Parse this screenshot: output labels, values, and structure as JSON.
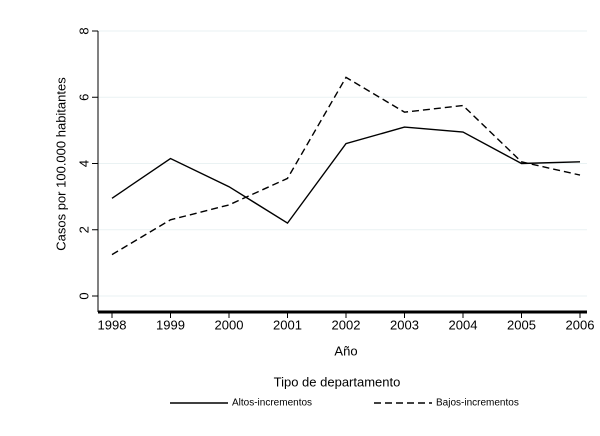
{
  "chart_data": {
    "type": "line",
    "x_label": "Año",
    "y_label": "Casos por 100.000 habitantes",
    "x": [
      1998,
      1999,
      2000,
      2001,
      2002,
      2003,
      2004,
      2005,
      2006
    ],
    "series": [
      {
        "name": "Altos-incrementos",
        "color": "#000000",
        "dash": "solid",
        "values": [
          2.95,
          4.15,
          3.3,
          2.2,
          4.6,
          5.1,
          4.95,
          4.0,
          4.05
        ]
      },
      {
        "name": "Bajos-incrementos",
        "color": "#000000",
        "dash": "dashed",
        "values": [
          1.25,
          2.3,
          2.75,
          3.55,
          6.6,
          5.55,
          5.75,
          4.05,
          3.65
        ]
      }
    ],
    "xlim": [
      1998,
      2006
    ],
    "xticks": [
      1998,
      1999,
      2000,
      2001,
      2002,
      2003,
      2004,
      2005,
      2006
    ],
    "ylim": [
      0,
      8
    ],
    "yticks": [
      0,
      2,
      4,
      6,
      8
    ],
    "grid": true,
    "legend_title": "Tipo de departamento",
    "legend_position": "bottom"
  }
}
